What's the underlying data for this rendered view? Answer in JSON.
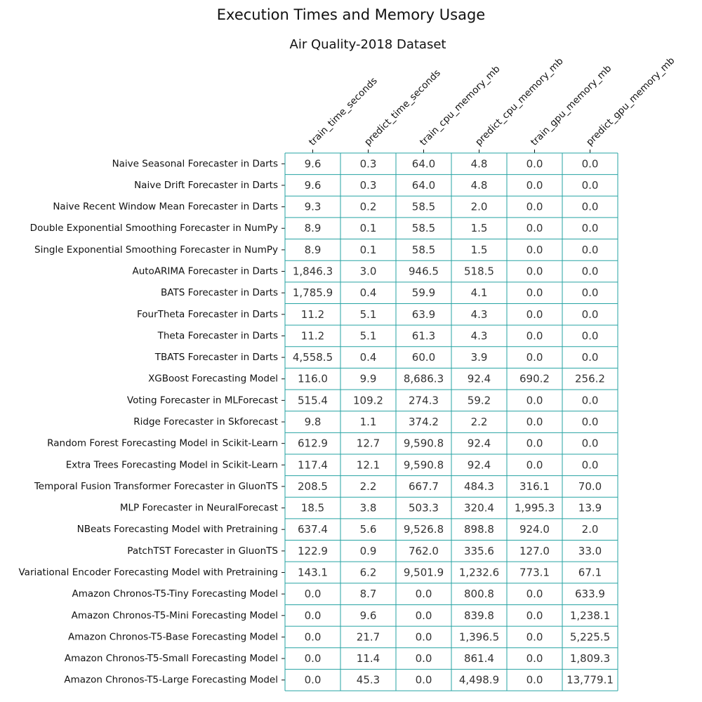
{
  "chart_data": {
    "type": "table",
    "title": "Execution Times and Memory Usage",
    "subtitle": "Air Quality-2018 Dataset",
    "grid_color": "#26a3a3",
    "columns": [
      "train_time_seconds",
      "predict_time_seconds",
      "train_cpu_memory_mb",
      "predict_cpu_memory_mb",
      "train_gpu_memory_mb",
      "predict_gpu_memory_mb"
    ],
    "rows": [
      {
        "label": "Naive Seasonal Forecaster in Darts",
        "values": [
          "9.6",
          "0.3",
          "64.0",
          "4.8",
          "0.0",
          "0.0"
        ]
      },
      {
        "label": "Naive Drift Forecaster in Darts",
        "values": [
          "9.6",
          "0.3",
          "64.0",
          "4.8",
          "0.0",
          "0.0"
        ]
      },
      {
        "label": "Naive Recent Window Mean Forecaster in Darts",
        "values": [
          "9.3",
          "0.2",
          "58.5",
          "2.0",
          "0.0",
          "0.0"
        ]
      },
      {
        "label": "Double Exponential Smoothing Forecaster in NumPy",
        "values": [
          "8.9",
          "0.1",
          "58.5",
          "1.5",
          "0.0",
          "0.0"
        ]
      },
      {
        "label": "Single Exponential Smoothing Forecaster in NumPy",
        "values": [
          "8.9",
          "0.1",
          "58.5",
          "1.5",
          "0.0",
          "0.0"
        ]
      },
      {
        "label": "AutoARIMA Forecaster in Darts",
        "values": [
          "1,846.3",
          "3.0",
          "946.5",
          "518.5",
          "0.0",
          "0.0"
        ]
      },
      {
        "label": "BATS Forecaster in Darts",
        "values": [
          "1,785.9",
          "0.4",
          "59.9",
          "4.1",
          "0.0",
          "0.0"
        ]
      },
      {
        "label": "FourTheta Forecaster in Darts",
        "values": [
          "11.2",
          "5.1",
          "63.9",
          "4.3",
          "0.0",
          "0.0"
        ]
      },
      {
        "label": "Theta Forecaster in Darts",
        "values": [
          "11.2",
          "5.1",
          "61.3",
          "4.3",
          "0.0",
          "0.0"
        ]
      },
      {
        "label": "TBATS Forecaster in Darts",
        "values": [
          "4,558.5",
          "0.4",
          "60.0",
          "3.9",
          "0.0",
          "0.0"
        ]
      },
      {
        "label": "XGBoost Forecasting Model",
        "values": [
          "116.0",
          "9.9",
          "8,686.3",
          "92.4",
          "690.2",
          "256.2"
        ]
      },
      {
        "label": "Voting Forecaster in MLForecast",
        "values": [
          "515.4",
          "109.2",
          "274.3",
          "59.2",
          "0.0",
          "0.0"
        ]
      },
      {
        "label": "Ridge Forecaster in Skforecast",
        "values": [
          "9.8",
          "1.1",
          "374.2",
          "2.2",
          "0.0",
          "0.0"
        ]
      },
      {
        "label": "Random Forest Forecasting Model in Scikit-Learn",
        "values": [
          "612.9",
          "12.7",
          "9,590.8",
          "92.4",
          "0.0",
          "0.0"
        ]
      },
      {
        "label": "Extra Trees Forecasting Model in Scikit-Learn",
        "values": [
          "117.4",
          "12.1",
          "9,590.8",
          "92.4",
          "0.0",
          "0.0"
        ]
      },
      {
        "label": "Temporal Fusion Transformer Forecaster in GluonTS",
        "values": [
          "208.5",
          "2.2",
          "667.7",
          "484.3",
          "316.1",
          "70.0"
        ]
      },
      {
        "label": "MLP Forecaster in NeuralForecast",
        "values": [
          "18.5",
          "3.8",
          "503.3",
          "320.4",
          "1,995.3",
          "13.9"
        ]
      },
      {
        "label": "NBeats Forecasting Model with Pretraining",
        "values": [
          "637.4",
          "5.6",
          "9,526.8",
          "898.8",
          "924.0",
          "2.0"
        ]
      },
      {
        "label": "PatchTST Forecaster in GluonTS",
        "values": [
          "122.9",
          "0.9",
          "762.0",
          "335.6",
          "127.0",
          "33.0"
        ]
      },
      {
        "label": "Variational Encoder Forecasting Model with Pretraining",
        "values": [
          "143.1",
          "6.2",
          "9,501.9",
          "1,232.6",
          "773.1",
          "67.1"
        ]
      },
      {
        "label": "Amazon Chronos-T5-Tiny Forecasting Model",
        "values": [
          "0.0",
          "8.7",
          "0.0",
          "800.8",
          "0.0",
          "633.9"
        ]
      },
      {
        "label": "Amazon Chronos-T5-Mini Forecasting Model",
        "values": [
          "0.0",
          "9.6",
          "0.0",
          "839.8",
          "0.0",
          "1,238.1"
        ]
      },
      {
        "label": "Amazon Chronos-T5-Base Forecasting Model",
        "values": [
          "0.0",
          "21.7",
          "0.0",
          "1,396.5",
          "0.0",
          "5,225.5"
        ]
      },
      {
        "label": "Amazon Chronos-T5-Small Forecasting Model",
        "values": [
          "0.0",
          "11.4",
          "0.0",
          "861.4",
          "0.0",
          "1,809.3"
        ]
      },
      {
        "label": "Amazon Chronos-T5-Large Forecasting Model",
        "values": [
          "0.0",
          "45.3",
          "0.0",
          "4,498.9",
          "0.0",
          "13,779.1"
        ]
      }
    ]
  }
}
